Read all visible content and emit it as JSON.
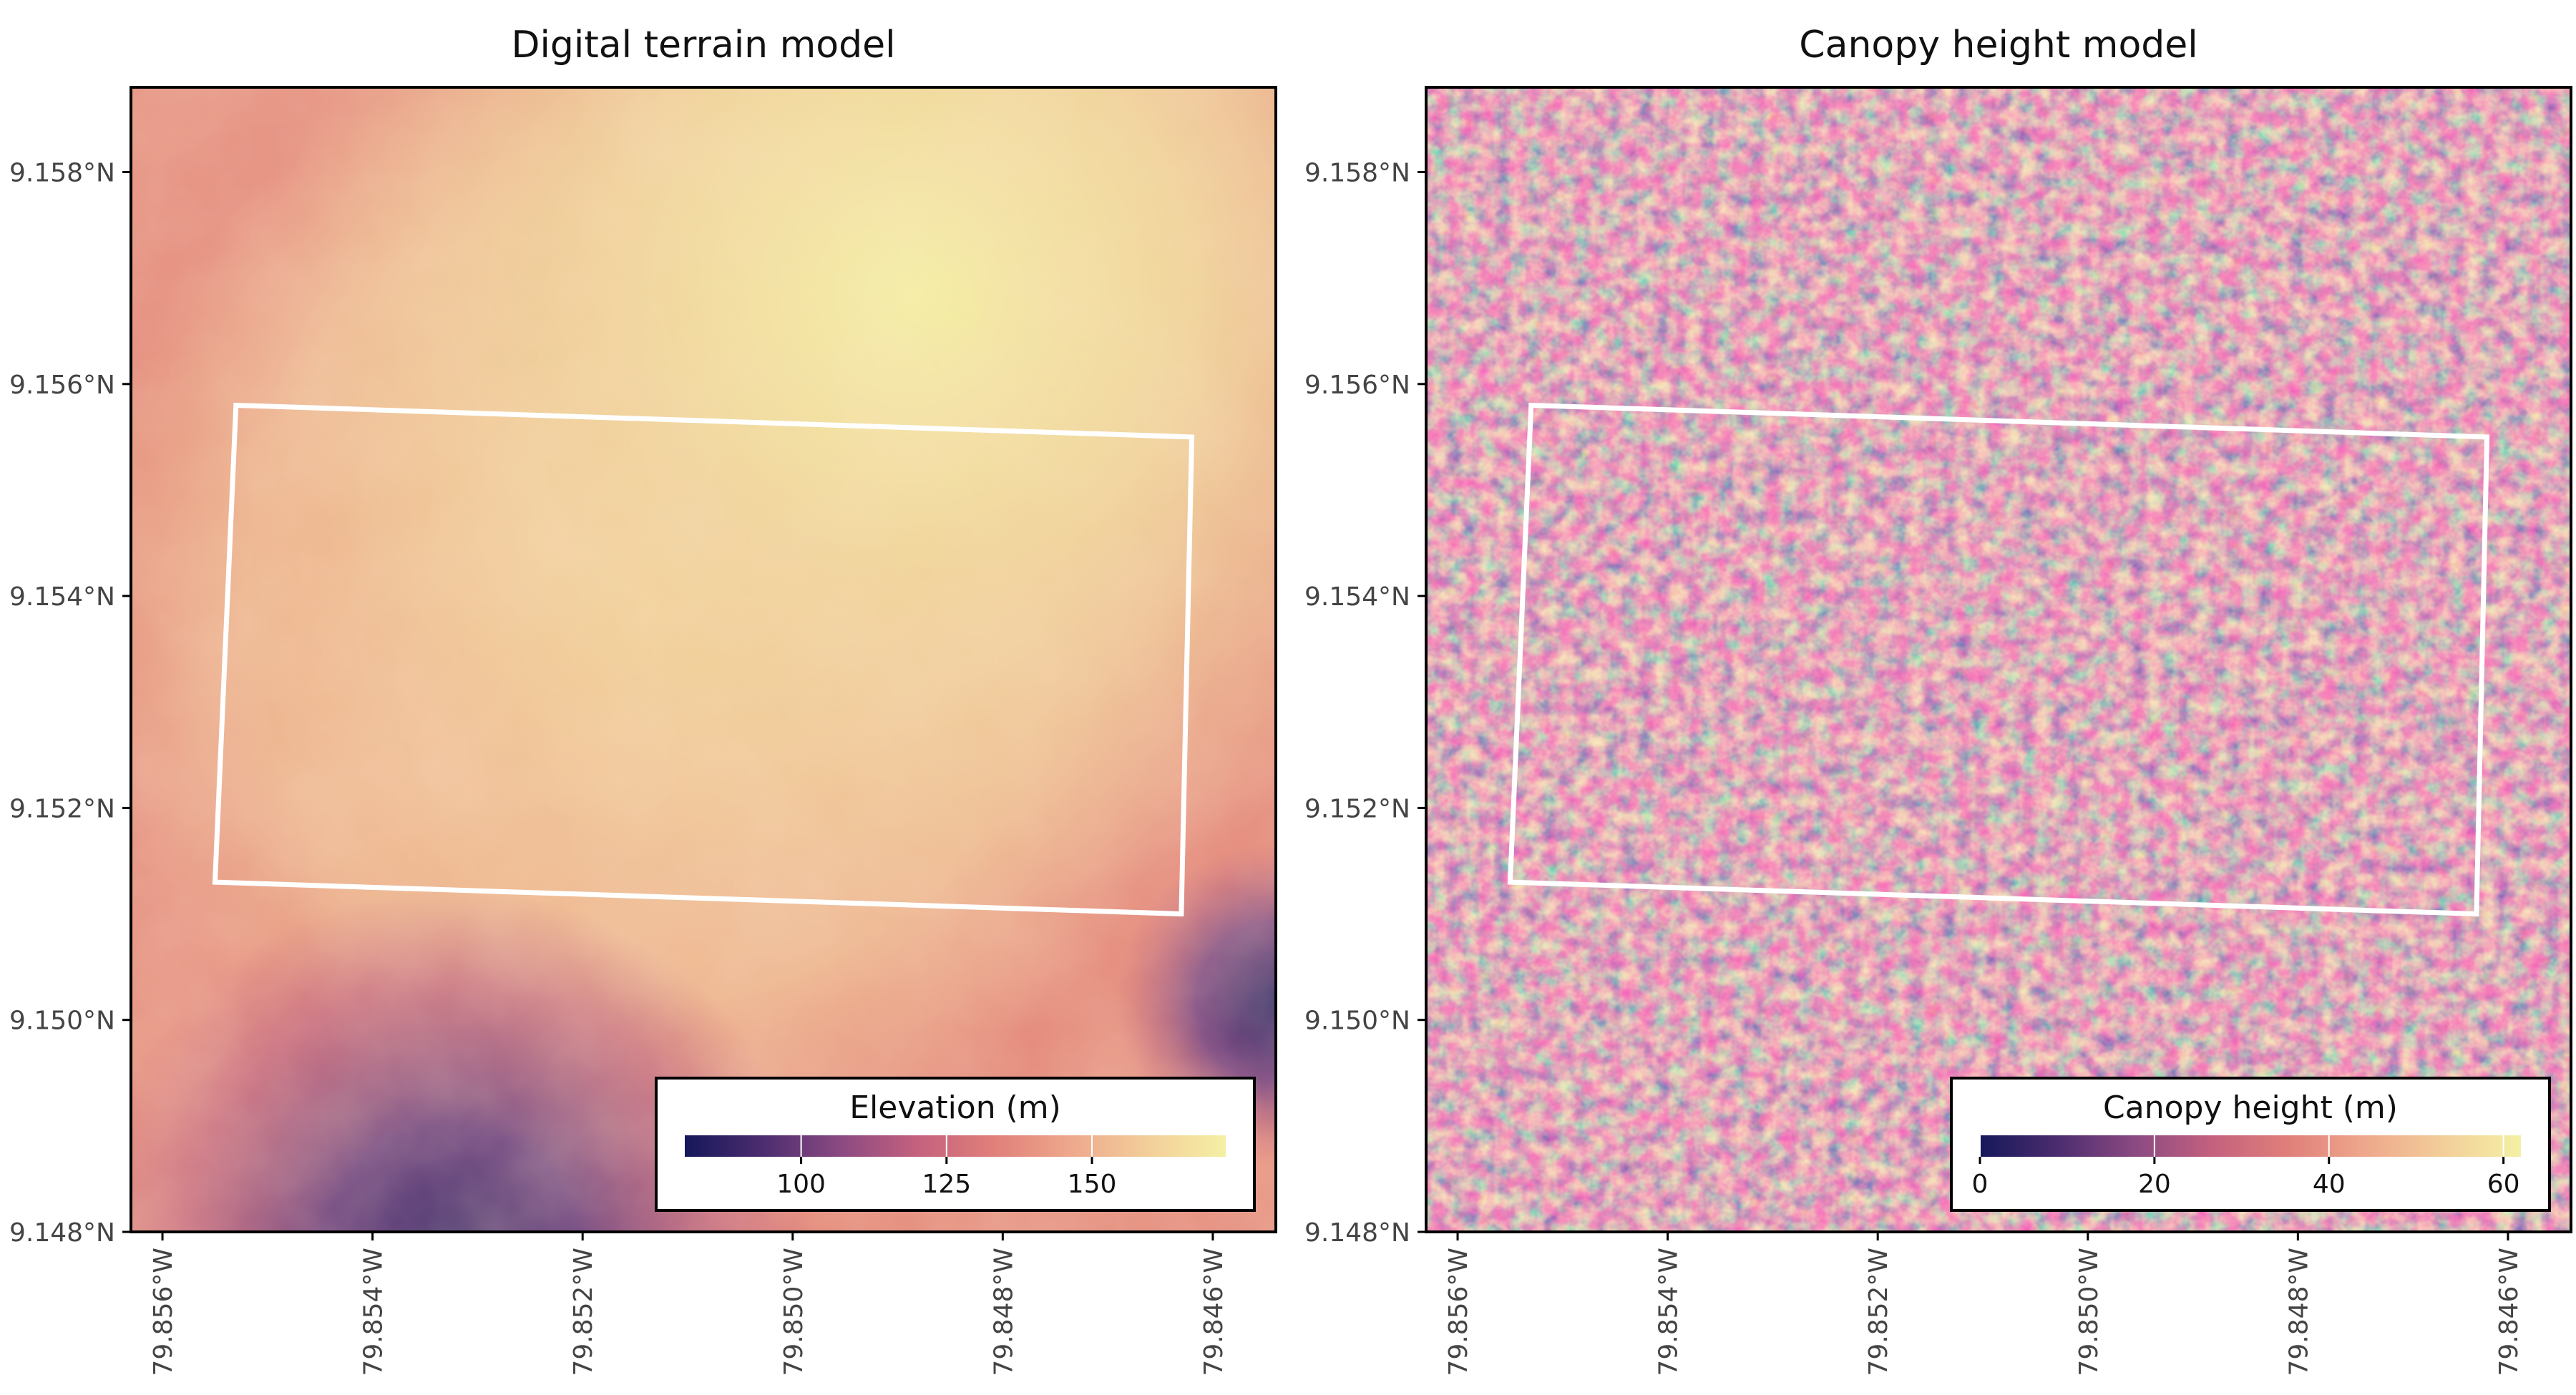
{
  "panels": [
    {
      "title": "Digital terrain model",
      "legend": {
        "title": "Elevation (m)",
        "min": 80,
        "max": 173,
        "ticks": [
          100,
          125,
          150
        ]
      }
    },
    {
      "title": "Canopy height model",
      "legend": {
        "title": "Canopy height (m)",
        "min": 0,
        "max": 62,
        "ticks": [
          0,
          20,
          40,
          60
        ]
      }
    }
  ],
  "axes": {
    "lat_labels": [
      "9.158°N",
      "9.156°N",
      "9.154°N",
      "9.152°N",
      "9.150°N",
      "9.148°N"
    ],
    "lon_labels": [
      "79.856°W",
      "79.854°W",
      "79.852°W",
      "79.850°W",
      "79.848°W",
      "79.846°W"
    ],
    "lat_range": [
      9.148,
      9.1588
    ],
    "lon_range": [
      -79.8563,
      -79.8454
    ]
  },
  "plot_outline": {
    "color": "#ffffff",
    "corners_lonlat": [
      [
        -79.8553,
        9.1558
      ],
      [
        -79.8462,
        9.1555
      ],
      [
        -79.8463,
        9.151
      ],
      [
        -79.8555,
        9.1513
      ]
    ]
  },
  "colormap": [
    "#15185a",
    "#4a2c6e",
    "#8c4a82",
    "#c4617e",
    "#e07f7a",
    "#eea78c",
    "#f3cf9a",
    "#f4f0a4"
  ]
}
